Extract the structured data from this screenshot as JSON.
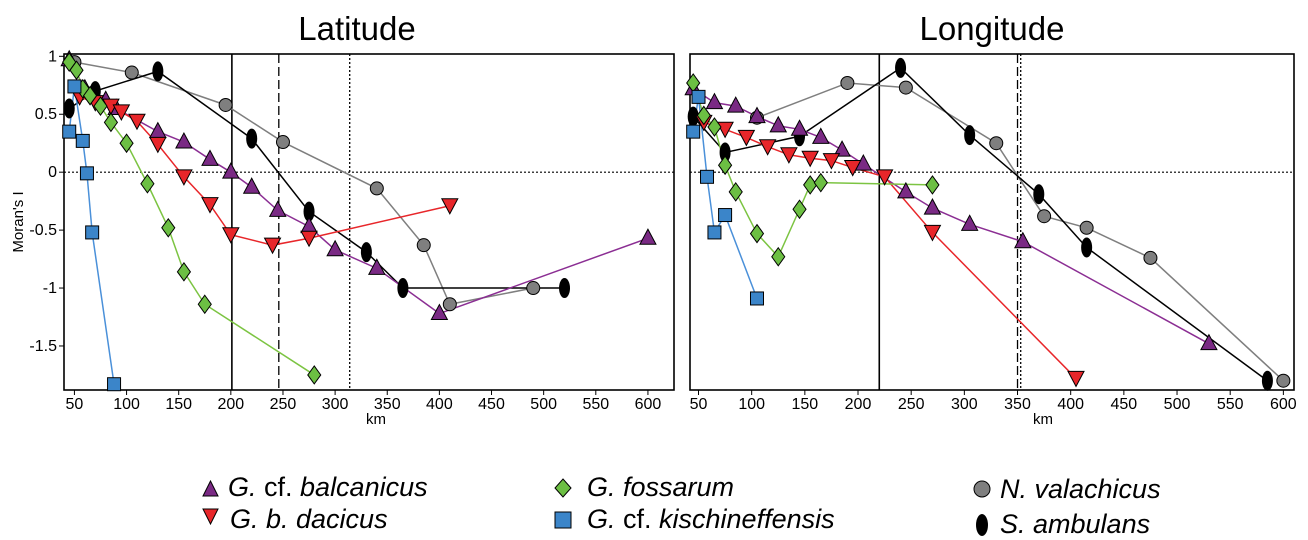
{
  "chart_data": [
    {
      "type": "line",
      "title": "Latitude",
      "xlabel": "km",
      "ylabel": "Moran's I",
      "xlim": [
        40,
        625
      ],
      "ylim": [
        -1.88,
        1.02
      ],
      "xticks": [
        50,
        100,
        150,
        200,
        250,
        300,
        350,
        400,
        450,
        500,
        550,
        600
      ],
      "yticks": [
        1,
        0.5,
        0,
        -0.5,
        -1,
        -1.5
      ],
      "ytick_labels": [
        "1",
        "0.5",
        "0",
        "-0.5",
        "-1",
        "-1.5"
      ],
      "vlines": [
        {
          "x": 201,
          "style": "solid"
        },
        {
          "x": 246,
          "style": "dashed"
        },
        {
          "x": 314,
          "style": "dotted"
        }
      ],
      "hline": {
        "y": 0,
        "style": "dotted"
      },
      "series": [
        {
          "key": "balcanicus",
          "x": [
            45,
            60,
            80,
            90,
            130,
            155,
            180,
            200,
            220,
            245,
            275,
            300,
            340,
            400,
            600
          ],
          "y": [
            0.97,
            0.72,
            0.62,
            0.55,
            0.35,
            0.26,
            0.11,
            0.0,
            -0.13,
            -0.33,
            -0.47,
            -0.67,
            -0.83,
            -1.22,
            -0.57
          ]
        },
        {
          "key": "dacicus",
          "x": [
            55,
            70,
            85,
            95,
            110,
            130,
            155,
            180,
            200,
            240,
            275,
            410
          ],
          "y": [
            0.65,
            0.6,
            0.57,
            0.52,
            0.44,
            0.24,
            -0.04,
            -0.28,
            -0.54,
            -0.63,
            -0.57,
            -0.29
          ]
        },
        {
          "key": "fossarum",
          "x": [
            45,
            52,
            58,
            65,
            75,
            85,
            100,
            120,
            140,
            155,
            175,
            280
          ],
          "y": [
            0.95,
            0.88,
            0.72,
            0.66,
            0.57,
            0.43,
            0.25,
            -0.1,
            -0.48,
            -0.86,
            -1.14,
            -1.75
          ]
        },
        {
          "key": "kischineffensis",
          "x": [
            45,
            50,
            58,
            62,
            67,
            88
          ],
          "y": [
            0.35,
            0.74,
            0.27,
            -0.01,
            -0.52,
            -1.83
          ]
        },
        {
          "key": "valachicus",
          "x": [
            50,
            105,
            195,
            250,
            340,
            385,
            410,
            490
          ],
          "y": [
            0.95,
            0.86,
            0.58,
            0.26,
            -0.14,
            -0.63,
            -1.14,
            -1.0
          ]
        },
        {
          "key": "ambulans",
          "x": [
            45,
            70,
            130,
            220,
            275,
            330,
            365,
            520
          ],
          "y": [
            0.55,
            0.7,
            0.87,
            0.29,
            -0.34,
            -0.69,
            -1.0,
            -1.0
          ]
        }
      ]
    },
    {
      "type": "line",
      "title": "Longitude",
      "xlabel": "km",
      "ylabel": "",
      "xlim": [
        42,
        610
      ],
      "ylim": [
        -1.88,
        1.02
      ],
      "xticks": [
        50,
        100,
        150,
        200,
        250,
        300,
        350,
        400,
        450,
        500,
        550,
        600
      ],
      "yticks": [],
      "ytick_labels": [],
      "vlines": [
        {
          "x": 220,
          "style": "solid"
        },
        {
          "x": 350,
          "style": "dashed"
        },
        {
          "x": 353,
          "style": "dotted"
        }
      ],
      "hline": {
        "y": 0,
        "style": "dotted"
      },
      "series": [
        {
          "key": "balcanicus",
          "x": [
            45,
            65,
            85,
            105,
            125,
            145,
            165,
            185,
            205,
            245,
            270,
            305,
            355,
            530
          ],
          "y": [
            0.72,
            0.6,
            0.57,
            0.48,
            0.4,
            0.37,
            0.3,
            0.19,
            0.07,
            -0.17,
            -0.31,
            -0.45,
            -0.6,
            -1.48
          ]
        },
        {
          "key": "dacicus",
          "x": [
            55,
            75,
            95,
            115,
            135,
            155,
            175,
            195,
            225,
            270,
            405
          ],
          "y": [
            0.43,
            0.37,
            0.3,
            0.22,
            0.15,
            0.12,
            0.1,
            0.04,
            -0.04,
            -0.52,
            -1.78
          ]
        },
        {
          "key": "fossarum",
          "x": [
            45,
            55,
            65,
            75,
            85,
            105,
            125,
            145,
            155,
            165,
            270
          ],
          "y": [
            0.77,
            0.49,
            0.39,
            0.06,
            -0.17,
            -0.53,
            -0.73,
            -0.32,
            -0.11,
            -0.09,
            -0.11
          ]
        },
        {
          "key": "kischineffensis",
          "x": [
            45,
            50,
            58,
            65,
            75,
            105
          ],
          "y": [
            0.35,
            0.65,
            -0.04,
            -0.52,
            -0.37,
            -1.09
          ]
        },
        {
          "key": "valachicus",
          "x": [
            105,
            190,
            245,
            330,
            375,
            415,
            475,
            600
          ],
          "y": [
            0.47,
            0.77,
            0.73,
            0.25,
            -0.38,
            -0.48,
            -0.74,
            -1.8
          ]
        },
        {
          "key": "ambulans",
          "x": [
            45,
            75,
            145,
            240,
            305,
            370,
            415,
            585
          ],
          "y": [
            0.48,
            0.17,
            0.31,
            0.9,
            0.32,
            -0.19,
            -0.65,
            -1.8
          ]
        }
      ]
    }
  ],
  "legend": {
    "balcanicus": {
      "pre": "G.",
      "mid": " cf. ",
      "post": "balcanicus",
      "marker": "triangle-up",
      "color": "#7a2a84"
    },
    "dacicus": {
      "pre": "G. b. dacicus",
      "mid": "",
      "post": "",
      "marker": "triangle-down",
      "color": "#e8262a"
    },
    "fossarum": {
      "pre": "G. fossarum",
      "mid": "",
      "post": "",
      "marker": "diamond",
      "color": "#6cbf43"
    },
    "kischineffensis": {
      "pre": "G.",
      "mid": " cf. ",
      "post": "kischineffensis",
      "marker": "square",
      "color": "#3b85c9"
    },
    "valachicus": {
      "pre": "N. valachicus",
      "mid": "",
      "post": "",
      "marker": "circle",
      "color": "#7f7f7f"
    },
    "ambulans": {
      "pre": "S. ambulans",
      "mid": "",
      "post": "",
      "marker": "ellipse",
      "color": "#000000"
    }
  },
  "styles": {
    "balcanicus": {
      "line": "#8b2e93",
      "fill": "#7a2a84"
    },
    "dacicus": {
      "line": "#e8262a",
      "fill": "#e8262a"
    },
    "fossarum": {
      "line": "#7cc442",
      "fill": "#6cbf43"
    },
    "kischineffensis": {
      "line": "#4a90d9",
      "fill": "#3b85c9"
    },
    "valachicus": {
      "line": "#7f7f7f",
      "fill": "#7f7f7f"
    },
    "ambulans": {
      "line": "#000000",
      "fill": "#000000"
    }
  }
}
